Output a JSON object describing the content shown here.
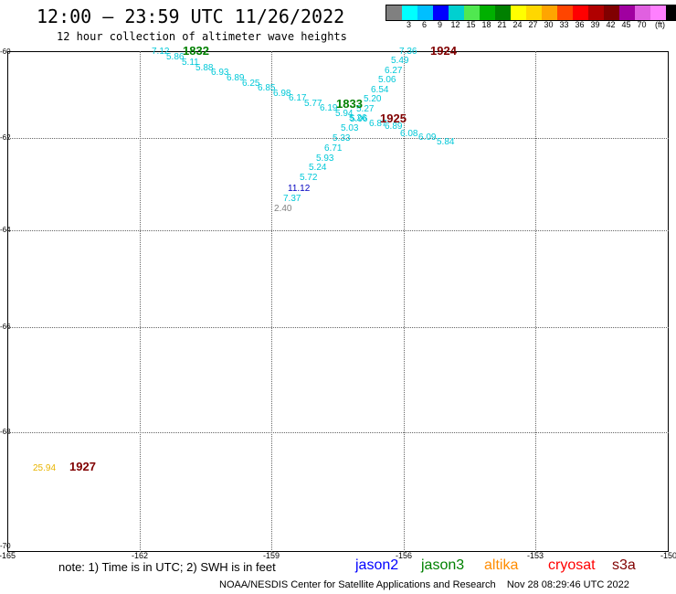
{
  "header": {
    "title": "12:00 – 23:59 UTC 11/26/2022",
    "subtitle": "12 hour collection of altimeter wave heights"
  },
  "scale": {
    "colors": [
      "#808080",
      "#00ffff",
      "#00bfff",
      "#0000ff",
      "#00d0d0",
      "#50e850",
      "#00b000",
      "#008000",
      "#ffff00",
      "#ffd700",
      "#ffa500",
      "#ff4500",
      "#ff0000",
      "#b00000",
      "#800000",
      "#a000a0",
      "#e060e0",
      "#ff80ff",
      "#000000"
    ],
    "labels": [
      "3",
      "6",
      "9",
      "12",
      "15",
      "18",
      "21",
      "24",
      "27",
      "30",
      "33",
      "36",
      "39",
      "42",
      "45",
      "70"
    ],
    "unit": "(ft)"
  },
  "axes": {
    "lat_labels": [
      "-60",
      "-62",
      "-64",
      "-66",
      "-68",
      "-70"
    ],
    "lon_labels": [
      "-165",
      "-162",
      "-159",
      "-156",
      "-153",
      "-150"
    ]
  },
  "observations": [
    {
      "text": "7.12",
      "c": "#00c8d8"
    },
    {
      "text": "5.86",
      "c": "#00c8d8"
    },
    {
      "text": "5.11",
      "c": "#00c8d8"
    },
    {
      "text": "5.88",
      "c": "#00c8d8"
    },
    {
      "text": "6.93",
      "c": "#00c8d8"
    },
    {
      "text": "6.89",
      "c": "#00c8d8"
    },
    {
      "text": "6.25",
      "c": "#00c8d8"
    },
    {
      "text": "6.85",
      "c": "#00c8d8"
    },
    {
      "text": "6.98",
      "c": "#00c8d8"
    },
    {
      "text": "6.17",
      "c": "#00c8d8"
    },
    {
      "text": "5.77",
      "c": "#00c8d8"
    },
    {
      "text": "6.19",
      "c": "#00c8d8"
    },
    {
      "text": "5.94",
      "c": "#00c8d8"
    },
    {
      "text": "5.96",
      "c": "#00c8d8"
    },
    {
      "text": "6.87",
      "c": "#00c8d8"
    },
    {
      "text": "7.36",
      "c": "#00c8d8"
    },
    {
      "text": "5.49",
      "c": "#00c8d8"
    },
    {
      "text": "6.27",
      "c": "#00c8d8"
    },
    {
      "text": "5.06",
      "c": "#00c8d8"
    },
    {
      "text": "6.54",
      "c": "#00c8d8"
    },
    {
      "text": "5.20",
      "c": "#00c8d8"
    },
    {
      "text": "5.27",
      "c": "#00c8d8"
    },
    {
      "text": "5.26",
      "c": "#00c8d8"
    },
    {
      "text": "5.03",
      "c": "#00c8d8"
    },
    {
      "text": "6.89",
      "c": "#00c8d8"
    },
    {
      "text": "6.08",
      "c": "#00c8d8"
    },
    {
      "text": "6.09",
      "c": "#00c8d8"
    },
    {
      "text": "5.84",
      "c": "#00c8d8"
    },
    {
      "text": "5.33",
      "c": "#00c8d8"
    },
    {
      "text": "6.71",
      "c": "#00c8d8"
    },
    {
      "text": "5.93",
      "c": "#00c8d8"
    },
    {
      "text": "5.24",
      "c": "#00c8d8"
    },
    {
      "text": "5.72",
      "c": "#00c8d8"
    },
    {
      "text": "11.12",
      "c": "#0000c0"
    },
    {
      "text": "7.37",
      "c": "#00c8d8"
    },
    {
      "text": "2.40",
      "c": "#808080"
    },
    {
      "text": "25.94",
      "c": "#e8b400"
    }
  ],
  "pass_times": [
    {
      "text": "1832",
      "c": "#008000"
    },
    {
      "text": "1924",
      "c": "#800000"
    },
    {
      "text": "1833",
      "c": "#008000"
    },
    {
      "text": "1925",
      "c": "#800000"
    },
    {
      "text": "1927",
      "c": "#800000"
    }
  ],
  "footer": {
    "note": "note: 1) Time is in UTC; 2) SWH is in feet",
    "legend": [
      {
        "label": "jason2",
        "c": "#0000ff"
      },
      {
        "label": "jason3",
        "c": "#008000"
      },
      {
        "label": "altika",
        "c": "#ff8c00"
      },
      {
        "label": "cryosat",
        "c": "#ff0000"
      },
      {
        "label": "s3a",
        "c": "#800000"
      }
    ],
    "credit": "NOAA/NESDIS Center for Satellite Applications and Research",
    "timestamp": "Nov 28 08:29:46 UTC 2022"
  }
}
